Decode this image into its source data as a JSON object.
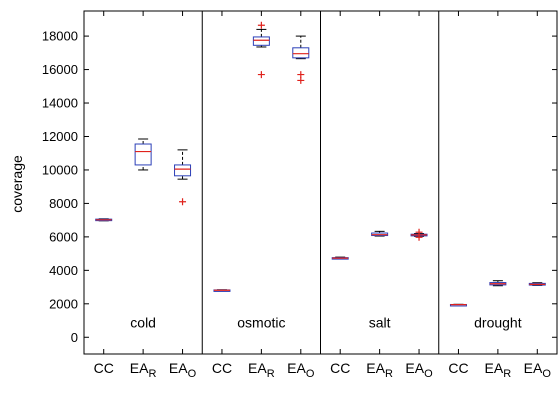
{
  "chart_data": {
    "type": "box",
    "title": "",
    "xlabel": "",
    "ylabel": "coverage",
    "ylim": [
      -1000,
      19500
    ],
    "yticks": [
      0,
      2000,
      4000,
      6000,
      8000,
      10000,
      12000,
      14000,
      16000,
      18000
    ],
    "grid": false,
    "colors": {
      "box": "#2b3fb8",
      "median": "#e0221c",
      "outlier": "#e0221c",
      "whisker": "#000000",
      "axis": "#000000"
    },
    "groups": [
      {
        "label": "cold",
        "boxes": [
          {
            "category": "CC",
            "label_base": "CC",
            "label_sub": "",
            "min": 6960,
            "q1": 6990,
            "median": 7020,
            "q3": 7060,
            "max": 7080,
            "outliers": []
          },
          {
            "category": "EA_R",
            "label_base": "EA",
            "label_sub": "R",
            "min": 10000,
            "q1": 10300,
            "median": 11100,
            "q3": 11550,
            "max": 11850,
            "outliers": []
          },
          {
            "category": "EA_O",
            "label_base": "EA",
            "label_sub": "O",
            "min": 9450,
            "q1": 9650,
            "median": 10050,
            "q3": 10300,
            "max": 11200,
            "outliers": [
              8100
            ]
          }
        ]
      },
      {
        "label": "osmotic",
        "boxes": [
          {
            "category": "CC",
            "label_base": "CC",
            "label_sub": "",
            "min": 2790,
            "q1": 2800,
            "median": 2810,
            "q3": 2830,
            "max": 2840,
            "outliers": []
          },
          {
            "category": "EA_R",
            "label_base": "EA",
            "label_sub": "R",
            "min": 17350,
            "q1": 17450,
            "median": 17750,
            "q3": 17950,
            "max": 18400,
            "outliers": [
              15700,
              18650
            ]
          },
          {
            "category": "EA_O",
            "label_base": "EA",
            "label_sub": "O",
            "min": 16650,
            "q1": 16700,
            "median": 16950,
            "q3": 17300,
            "max": 18000,
            "outliers": [
              15700,
              15350
            ]
          }
        ]
      },
      {
        "label": "salt",
        "boxes": [
          {
            "category": "CC",
            "label_base": "CC",
            "label_sub": "",
            "min": 4680,
            "q1": 4700,
            "median": 4730,
            "q3": 4760,
            "max": 4790,
            "outliers": []
          },
          {
            "category": "EA_R",
            "label_base": "EA",
            "label_sub": "R",
            "min": 6050,
            "q1": 6080,
            "median": 6130,
            "q3": 6230,
            "max": 6330,
            "outliers": []
          },
          {
            "category": "EA_O",
            "label_base": "EA",
            "label_sub": "O",
            "min": 6030,
            "q1": 6060,
            "median": 6120,
            "q3": 6160,
            "max": 6200,
            "outliers": [
              5980,
              6280
            ]
          }
        ]
      },
      {
        "label": "drought",
        "boxes": [
          {
            "category": "CC",
            "label_base": "CC",
            "label_sub": "",
            "min": 1930,
            "q1": 1940,
            "median": 1950,
            "q3": 1960,
            "max": 1970,
            "outliers": []
          },
          {
            "category": "EA_R",
            "label_base": "EA",
            "label_sub": "R",
            "min": 3080,
            "q1": 3130,
            "median": 3200,
            "q3": 3270,
            "max": 3380,
            "outliers": []
          },
          {
            "category": "EA_O",
            "label_base": "EA",
            "label_sub": "O",
            "min": 3100,
            "q1": 3120,
            "median": 3160,
            "q3": 3220,
            "max": 3260,
            "outliers": []
          }
        ]
      }
    ]
  }
}
